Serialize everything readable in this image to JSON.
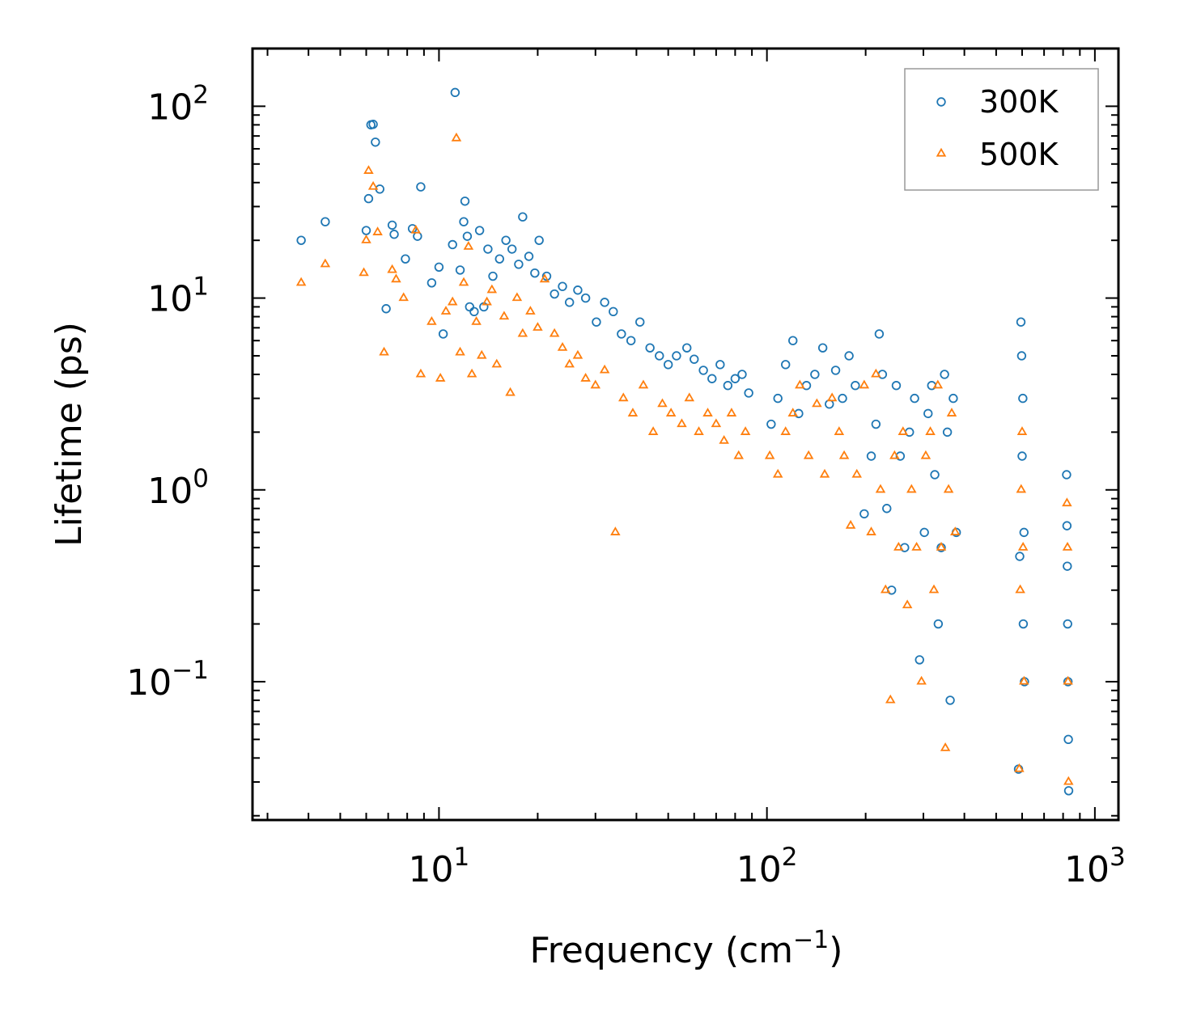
{
  "chart_data": {
    "type": "scatter",
    "title": "",
    "xlabel": "Frequency (cm",
    "xlabel_sup": "−1",
    "xlabel_tail": ")",
    "ylabel": "Lifetime (ps)",
    "xscale": "log",
    "yscale": "log",
    "xlim": [
      2.7,
      1180
    ],
    "ylim": [
      0.019,
      200
    ],
    "legend": "top-right",
    "x_ticks": [
      {
        "value": 10,
        "base": "10",
        "exp": "1"
      },
      {
        "value": 100,
        "base": "10",
        "exp": "2"
      },
      {
        "value": 1000,
        "base": "10",
        "exp": "3"
      }
    ],
    "y_ticks": [
      {
        "value": 0.1,
        "base": "10",
        "exp": "−1"
      },
      {
        "value": 1,
        "base": "10",
        "exp": "0"
      },
      {
        "value": 10,
        "base": "10",
        "exp": "1"
      },
      {
        "value": 100,
        "base": "10",
        "exp": "2"
      }
    ],
    "series": [
      {
        "name": "300K",
        "marker": "circle",
        "color": "#1f77b4",
        "x": [
          3.8,
          4.5,
          6.0,
          6.1,
          6.2,
          6.4,
          6.3,
          6.6,
          6.9,
          7.2,
          7.3,
          7.9,
          8.3,
          8.6,
          8.8,
          9.5,
          10.0,
          10.3,
          11.0,
          11.2,
          11.6,
          11.9,
          12.0,
          12.2,
          12.4,
          12.8,
          13.3,
          13.7,
          14.1,
          14.6,
          15.3,
          16.0,
          16.7,
          17.5,
          18.0,
          18.8,
          19.6,
          20.2,
          21.3,
          22.5,
          23.8,
          25.0,
          26.5,
          28.0,
          30.2,
          32.0,
          34.0,
          36.0,
          38.5,
          41.0,
          44.0,
          47.0,
          50.0,
          53.0,
          57.0,
          60.0,
          64.0,
          68.0,
          72.0,
          76.0,
          80.0,
          84.0,
          88.0,
          103,
          108,
          114,
          120,
          125,
          132,
          140,
          148,
          155,
          162,
          170,
          178,
          186,
          198,
          208,
          215,
          220,
          225,
          232,
          240,
          248,
          255,
          263,
          272,
          282,
          292,
          302,
          310,
          318,
          325,
          333,
          340,
          348,
          355,
          362,
          370,
          378,
          585,
          590,
          595,
          598,
          600,
          603,
          605,
          608,
          610,
          820,
          822,
          824,
          826,
          828,
          830,
          832
        ],
        "y": [
          20.0,
          25.0,
          22.5,
          33.0,
          80.0,
          65.0,
          80.5,
          37.0,
          8.8,
          24.0,
          21.5,
          16.0,
          23.0,
          21.0,
          38.0,
          12.0,
          14.5,
          6.5,
          19.0,
          118.0,
          14.0,
          25.0,
          32.0,
          21.0,
          9.0,
          8.5,
          22.5,
          9.0,
          18.0,
          13.0,
          16.0,
          20.0,
          18.0,
          15.0,
          26.5,
          16.5,
          13.5,
          20.0,
          13.0,
          10.5,
          11.5,
          9.5,
          11.0,
          10.0,
          7.5,
          9.5,
          8.5,
          6.5,
          6.0,
          7.5,
          5.5,
          5.0,
          4.5,
          5.0,
          5.5,
          4.8,
          4.2,
          3.8,
          4.5,
          3.5,
          3.8,
          4.0,
          3.2,
          2.2,
          3.0,
          4.5,
          6.0,
          2.5,
          3.5,
          4.0,
          5.5,
          2.8,
          4.2,
          3.0,
          5.0,
          3.5,
          0.75,
          1.5,
          2.2,
          6.5,
          4.0,
          0.8,
          0.3,
          3.5,
          1.5,
          0.5,
          2.0,
          3.0,
          0.13,
          0.6,
          2.5,
          3.5,
          1.2,
          0.2,
          0.5,
          4.0,
          2.0,
          0.08,
          3.0,
          0.6,
          0.035,
          0.45,
          7.5,
          5.0,
          1.5,
          3.0,
          0.2,
          0.6,
          0.1,
          1.2,
          0.65,
          0.4,
          0.2,
          0.1,
          0.05,
          0.027
        ]
      },
      {
        "name": "500K",
        "marker": "triangle",
        "color": "#ff7f0e",
        "x": [
          3.8,
          4.5,
          5.9,
          6.0,
          6.1,
          6.3,
          6.5,
          6.8,
          7.2,
          7.4,
          7.8,
          8.5,
          8.8,
          9.5,
          10.1,
          10.5,
          11.0,
          11.3,
          11.6,
          11.9,
          12.3,
          12.6,
          13.0,
          13.5,
          14.0,
          14.5,
          15.0,
          15.8,
          16.5,
          17.3,
          18.0,
          19.0,
          20.0,
          21.0,
          22.5,
          23.8,
          25.0,
          26.5,
          28.0,
          30.0,
          32.0,
          34.5,
          36.5,
          39.0,
          42.0,
          45.0,
          48.0,
          51.0,
          55.0,
          58.0,
          62.0,
          66.0,
          70.0,
          74.0,
          78.0,
          82.0,
          86.0,
          102,
          108,
          114,
          120,
          126,
          134,
          142,
          150,
          158,
          166,
          172,
          180,
          188,
          198,
          208,
          215,
          222,
          230,
          238,
          245,
          252,
          260,
          268,
          276,
          286,
          296,
          305,
          315,
          323,
          332,
          340,
          350,
          358,
          366,
          375,
          588,
          592,
          596,
          600,
          604,
          608,
          822,
          825,
          828,
          831
        ],
        "y": [
          12.0,
          15.0,
          13.5,
          20.0,
          46.0,
          38.0,
          22.0,
          5.2,
          14.0,
          12.5,
          10.0,
          22.5,
          4.0,
          7.5,
          3.8,
          8.5,
          9.5,
          68.0,
          5.2,
          12.0,
          18.5,
          4.0,
          7.5,
          5.0,
          9.5,
          11.0,
          4.5,
          8.0,
          3.2,
          10.0,
          6.5,
          8.5,
          7.0,
          12.5,
          6.5,
          5.5,
          4.5,
          5.0,
          3.8,
          3.5,
          4.2,
          0.6,
          3.0,
          2.5,
          3.5,
          2.0,
          2.8,
          2.5,
          2.2,
          3.0,
          2.0,
          2.5,
          2.2,
          1.8,
          2.5,
          1.5,
          2.0,
          1.5,
          1.2,
          2.0,
          2.5,
          3.5,
          1.5,
          2.8,
          1.2,
          3.0,
          2.0,
          1.5,
          0.65,
          1.2,
          3.5,
          0.6,
          4.0,
          1.0,
          0.3,
          0.08,
          1.5,
          0.5,
          2.0,
          0.25,
          1.0,
          0.5,
          0.1,
          1.5,
          2.0,
          0.3,
          3.5,
          0.5,
          0.045,
          1.0,
          2.5,
          0.6,
          0.035,
          0.3,
          1.0,
          2.0,
          0.5,
          0.1,
          0.85,
          0.5,
          0.1,
          0.03
        ]
      }
    ]
  }
}
